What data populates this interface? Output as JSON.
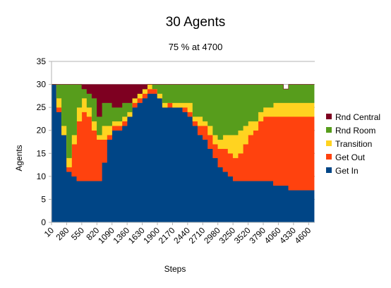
{
  "chart_data": {
    "type": "area",
    "stacked": true,
    "title": "30 Agents",
    "subtitle": "75 % at 4700",
    "xlabel": "Steps",
    "ylabel": "Agents",
    "ylim": [
      0,
      35
    ],
    "yticks": [
      0,
      5,
      10,
      15,
      20,
      25,
      30,
      35
    ],
    "xlim": [
      10,
      4710
    ],
    "xticks": [
      10,
      280,
      550,
      820,
      1090,
      1360,
      1630,
      1900,
      2170,
      2440,
      2710,
      2980,
      3250,
      3520,
      3790,
      4060,
      4330,
      4600
    ],
    "grid": "horizontal",
    "legend_position": "right",
    "x": [
      10,
      100,
      190,
      280,
      370,
      460,
      550,
      640,
      730,
      820,
      910,
      1000,
      1090,
      1180,
      1270,
      1360,
      1450,
      1540,
      1630,
      1720,
      1810,
      1900,
      1990,
      2080,
      2170,
      2260,
      2350,
      2440,
      2530,
      2620,
      2710,
      2800,
      2890,
      2980,
      3070,
      3160,
      3250,
      3340,
      3430,
      3520,
      3610,
      3700,
      3790,
      3880,
      3970,
      4060,
      4150,
      4240,
      4330,
      4420,
      4510,
      4600,
      4700
    ],
    "series": [
      {
        "name": "Get In",
        "color": "#004586",
        "values": [
          30,
          24,
          19,
          11,
          10,
          9,
          9,
          9,
          9,
          9,
          13,
          18,
          20,
          20,
          21,
          23,
          25,
          26,
          27,
          28,
          28,
          27,
          25,
          25,
          25,
          25,
          24,
          23,
          21,
          19,
          18,
          16,
          14,
          12,
          11,
          10,
          9,
          9,
          9,
          9,
          9,
          9,
          9,
          9,
          8,
          8,
          8,
          7,
          7,
          7,
          7,
          7,
          7
        ]
      },
      {
        "name": "Get Out",
        "color": "#ff420e",
        "values": [
          0,
          1,
          0,
          1,
          7,
          13,
          15,
          14,
          11,
          9,
          5,
          1,
          1,
          1,
          1,
          0,
          1,
          1,
          1,
          1,
          1,
          0,
          0,
          1,
          0,
          0,
          1,
          1,
          1,
          2,
          3,
          3,
          3,
          4,
          5,
          5,
          5,
          6,
          8,
          10,
          11,
          13,
          14,
          14,
          15,
          15,
          15,
          16,
          16,
          16,
          16,
          16,
          16
        ]
      },
      {
        "name": "Transition",
        "color": "#ffd320",
        "values": [
          0,
          2,
          2,
          2,
          2,
          3,
          3,
          2,
          2,
          1,
          3,
          2,
          1,
          1,
          1,
          1,
          1,
          1,
          1,
          1,
          0,
          1,
          1,
          0,
          1,
          1,
          1,
          2,
          1,
          2,
          1,
          2,
          2,
          2,
          3,
          4,
          5,
          5,
          4,
          3,
          2,
          2,
          2,
          2,
          3,
          3,
          3,
          3,
          3,
          3,
          3,
          3,
          3
        ]
      },
      {
        "name": "Rnd Room",
        "color": "#579d1c",
        "values": [
          0,
          3,
          9,
          16,
          11,
          5,
          2,
          3,
          5,
          4,
          5,
          5,
          3,
          3,
          3,
          2,
          0,
          0,
          0,
          0,
          1,
          2,
          4,
          4,
          4,
          4,
          4,
          4,
          7,
          7,
          8,
          9,
          11,
          12,
          11,
          11,
          11,
          10,
          9,
          8,
          8,
          6,
          5,
          5,
          4,
          4,
          3,
          4,
          4,
          4,
          4,
          4,
          4
        ]
      },
      {
        "name": "Rnd Central",
        "color": "#7e0021",
        "values": [
          0,
          0,
          0,
          0,
          0,
          0,
          1,
          2,
          3,
          7,
          4,
          4,
          5,
          5,
          4,
          4,
          3,
          2,
          1,
          0,
          0,
          0,
          0,
          0,
          0,
          0,
          0,
          0,
          0,
          0,
          0,
          0,
          0,
          0,
          0,
          0,
          0,
          0,
          0,
          0,
          0,
          0,
          0,
          0,
          0,
          0,
          0,
          0,
          0,
          0,
          0,
          0,
          0
        ]
      }
    ]
  }
}
